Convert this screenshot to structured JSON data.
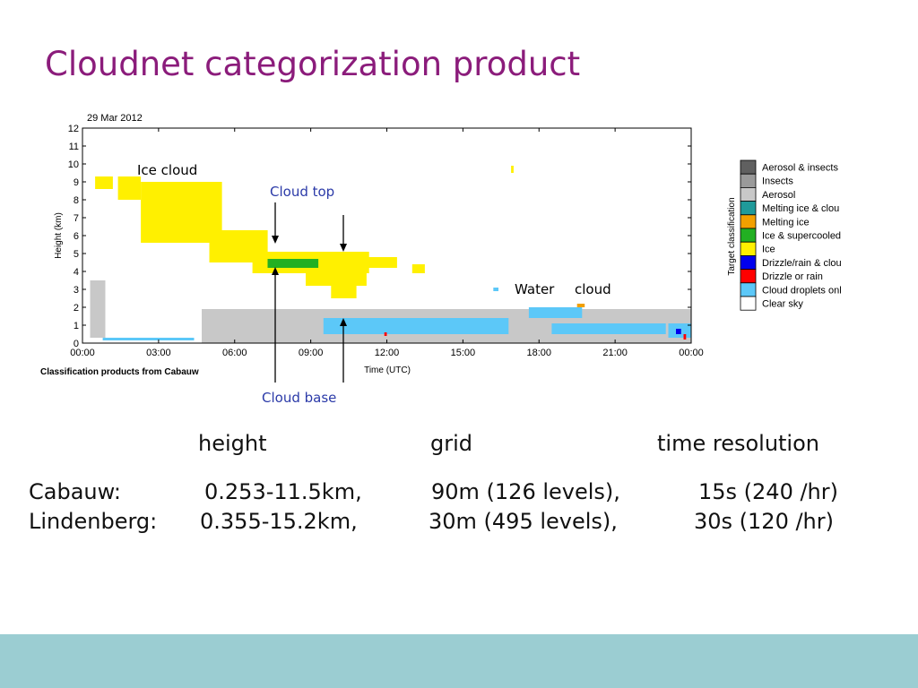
{
  "slide": {
    "title": "Cloudnet categorization product",
    "colors": {
      "title": "#8b1c7b",
      "footer_band": "#9bcdd2"
    }
  },
  "chart_data": {
    "type": "heatmap",
    "date": "29 Mar 2012",
    "source": "Classification products from Cabauw",
    "xlabel": "Time (UTC)",
    "ylabel": "Height (km)",
    "x_ticks": [
      "00:00",
      "03:00",
      "06:00",
      "09:00",
      "12:00",
      "15:00",
      "18:00",
      "21:00",
      "00:00"
    ],
    "y_ticks": [
      "0",
      "1",
      "2",
      "3",
      "4",
      "5",
      "6",
      "7",
      "8",
      "9",
      "10",
      "11",
      "12"
    ],
    "x_range_hours": [
      0,
      24
    ],
    "ylim": [
      0,
      12
    ],
    "legend_title": "Target classification",
    "legend": [
      {
        "label": "Aerosol & insects",
        "color": "#606060"
      },
      {
        "label": "Insects",
        "color": "#9a9a9a"
      },
      {
        "label": "Aerosol",
        "color": "#c8c8c8"
      },
      {
        "label": "Melting ice & clou",
        "color": "#1f9a9a"
      },
      {
        "label": "Melting ice",
        "color": "#f2a000"
      },
      {
        "label": "Ice & supercooled",
        "color": "#22b022"
      },
      {
        "label": "Ice",
        "color": "#fff000"
      },
      {
        "label": "Drizzle/rain & clou",
        "color": "#0000ee"
      },
      {
        "label": "Drizzle or rain",
        "color": "#ff0000"
      },
      {
        "label": "Cloud droplets onl",
        "color": "#5cc8f8"
      },
      {
        "label": "Clear sky",
        "color": "#ffffff"
      }
    ],
    "regions": [
      {
        "class": "Aerosol",
        "t": [
          4.7,
          24.0
        ],
        "h": [
          0.0,
          1.9
        ]
      },
      {
        "class": "Aerosol",
        "t": [
          0.3,
          0.9
        ],
        "h": [
          0.3,
          3.5
        ]
      },
      {
        "class": "Ice",
        "t": [
          0.5,
          1.2
        ],
        "h": [
          8.6,
          9.3
        ]
      },
      {
        "class": "Ice",
        "t": [
          1.4,
          2.3
        ],
        "h": [
          8.0,
          9.3
        ]
      },
      {
        "class": "Ice",
        "t": [
          2.3,
          5.5
        ],
        "h": [
          5.6,
          9.0
        ]
      },
      {
        "class": "Ice",
        "t": [
          5.0,
          7.3
        ],
        "h": [
          4.5,
          6.3
        ]
      },
      {
        "class": "Ice",
        "t": [
          6.7,
          11.3
        ],
        "h": [
          3.9,
          5.1
        ]
      },
      {
        "class": "Ice",
        "t": [
          8.8,
          11.2
        ],
        "h": [
          3.2,
          4.0
        ]
      },
      {
        "class": "Ice",
        "t": [
          9.8,
          10.8
        ],
        "h": [
          2.5,
          3.3
        ]
      },
      {
        "class": "Ice",
        "t": [
          11.2,
          12.4
        ],
        "h": [
          4.2,
          4.8
        ]
      },
      {
        "class": "Ice",
        "t": [
          13.0,
          13.5
        ],
        "h": [
          3.9,
          4.4
        ]
      },
      {
        "class": "Ice",
        "t": [
          16.9,
          17.0
        ],
        "h": [
          9.5,
          9.9
        ]
      },
      {
        "class": "Ice & supercooled",
        "t": [
          7.3,
          9.3
        ],
        "h": [
          4.2,
          4.7
        ]
      },
      {
        "class": "Cloud droplets onl",
        "t": [
          0.8,
          4.4
        ],
        "h": [
          0.15,
          0.3
        ]
      },
      {
        "class": "Cloud droplets onl",
        "t": [
          9.5,
          16.8
        ],
        "h": [
          0.5,
          1.4
        ]
      },
      {
        "class": "Cloud droplets onl",
        "t": [
          17.6,
          19.7
        ],
        "h": [
          1.4,
          2.0
        ]
      },
      {
        "class": "Cloud droplets onl",
        "t": [
          18.5,
          23.0
        ],
        "h": [
          0.5,
          1.1
        ]
      },
      {
        "class": "Cloud droplets onl",
        "t": [
          16.2,
          16.4
        ],
        "h": [
          2.9,
          3.1
        ]
      },
      {
        "class": "Cloud droplets onl",
        "t": [
          23.1,
          24.0
        ],
        "h": [
          0.3,
          1.1
        ]
      },
      {
        "class": "Drizzle or rain",
        "t": [
          11.9,
          12.0
        ],
        "h": [
          0.4,
          0.6
        ]
      },
      {
        "class": "Drizzle or rain",
        "t": [
          23.7,
          23.8
        ],
        "h": [
          0.2,
          0.5
        ]
      },
      {
        "class": "Drizzle/rain & clou",
        "t": [
          23.4,
          23.6
        ],
        "h": [
          0.5,
          0.8
        ]
      },
      {
        "class": "Melting ice",
        "t": [
          19.5,
          19.8
        ],
        "h": [
          2.0,
          2.2
        ]
      }
    ],
    "annotations": {
      "ice_cloud": "Ice cloud",
      "cloud_top": "Cloud top",
      "cloud_base": "Cloud base",
      "water": "Water",
      "cloud": "cloud"
    }
  },
  "table": {
    "headers": [
      "height",
      "grid",
      "time resolution"
    ],
    "rows": [
      {
        "site": "Cabauw:",
        "height": "0.253-11.5km,",
        "grid": "90m (126 levels),",
        "time": "15s (240 /hr)"
      },
      {
        "site": "Lindenberg:",
        "height": "0.355-15.2km,",
        "grid": "30m (495 levels),",
        "time": "30s (120 /hr)"
      }
    ]
  }
}
